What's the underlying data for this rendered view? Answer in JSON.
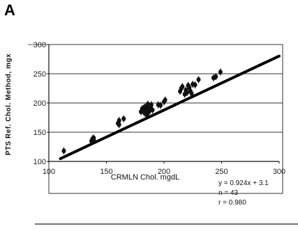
{
  "panel_label": "A",
  "chart_data": {
    "type": "scatter",
    "title": "",
    "xlabel": "CRMLN Chol. mgdL",
    "ylabel": "PTS Ref. Chol. Method, mgx",
    "xlim": [
      100,
      300
    ],
    "ylim": [
      100,
      300
    ],
    "xticks": [
      100,
      150,
      200,
      250,
      300
    ],
    "yticks": [
      100,
      150,
      200,
      250,
      300
    ],
    "grid": "horizontal",
    "legend": "none",
    "fit_line": {
      "slope": 0.924,
      "intercept": 3.1
    },
    "points": [
      [
        113,
        118
      ],
      [
        137,
        135
      ],
      [
        138,
        139
      ],
      [
        139,
        140
      ],
      [
        139,
        137
      ],
      [
        160,
        165
      ],
      [
        161,
        170
      ],
      [
        161,
        163
      ],
      [
        165,
        173
      ],
      [
        180,
        185
      ],
      [
        181,
        190
      ],
      [
        182,
        188
      ],
      [
        183,
        193
      ],
      [
        183,
        183
      ],
      [
        184,
        186
      ],
      [
        185,
        195
      ],
      [
        185,
        180
      ],
      [
        186,
        190
      ],
      [
        186,
        198
      ],
      [
        187,
        185
      ],
      [
        188,
        191
      ],
      [
        189,
        197
      ],
      [
        190,
        188
      ],
      [
        195,
        197
      ],
      [
        197,
        196
      ],
      [
        200,
        202
      ],
      [
        201,
        205
      ],
      [
        214,
        220
      ],
      [
        215,
        225
      ],
      [
        216,
        228
      ],
      [
        218,
        215
      ],
      [
        219,
        222
      ],
      [
        220,
        218
      ],
      [
        221,
        230
      ],
      [
        222,
        226
      ],
      [
        223,
        220
      ],
      [
        224,
        216
      ],
      [
        225,
        232
      ],
      [
        227,
        231
      ],
      [
        230,
        240
      ],
      [
        243,
        243
      ],
      [
        245,
        245
      ],
      [
        249,
        253
      ]
    ],
    "stats": {
      "equation": "y = 0.924x + 3.1",
      "n": "n = 43",
      "r": "r = 0.980"
    }
  }
}
